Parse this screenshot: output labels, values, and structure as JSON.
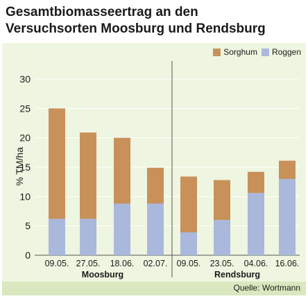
{
  "chart_data": {
    "type": "bar",
    "stacked": true,
    "title": "Gesamtbiomasseertrag an den Versuchsorten Moosburg und Rendsburg",
    "ylabel": "% TM/ha",
    "ylim": [
      0,
      30
    ],
    "yticks": [
      "0",
      "5",
      "10",
      "15",
      "20",
      "25",
      "30"
    ],
    "grid": true,
    "legend_position": "top-right",
    "groups": [
      {
        "name": "Moosburg",
        "categories": [
          "09.05.",
          "27.05.",
          "18.06.",
          "02.07."
        ]
      },
      {
        "name": "Rendsburg",
        "categories": [
          "09.05.",
          "23.05.",
          "04.06.",
          "16.06."
        ]
      }
    ],
    "series": [
      {
        "name": "Roggen",
        "color": "#aab8dc",
        "values": [
          6.2,
          6.2,
          8.8,
          8.8,
          3.9,
          6.0,
          10.6,
          13.0
        ]
      },
      {
        "name": "Sorghum",
        "color": "#c8915a",
        "values": [
          18.8,
          14.7,
          11.2,
          6.1,
          9.5,
          6.8,
          3.6,
          3.1
        ]
      }
    ],
    "source": "Quelle: Wortmann"
  }
}
